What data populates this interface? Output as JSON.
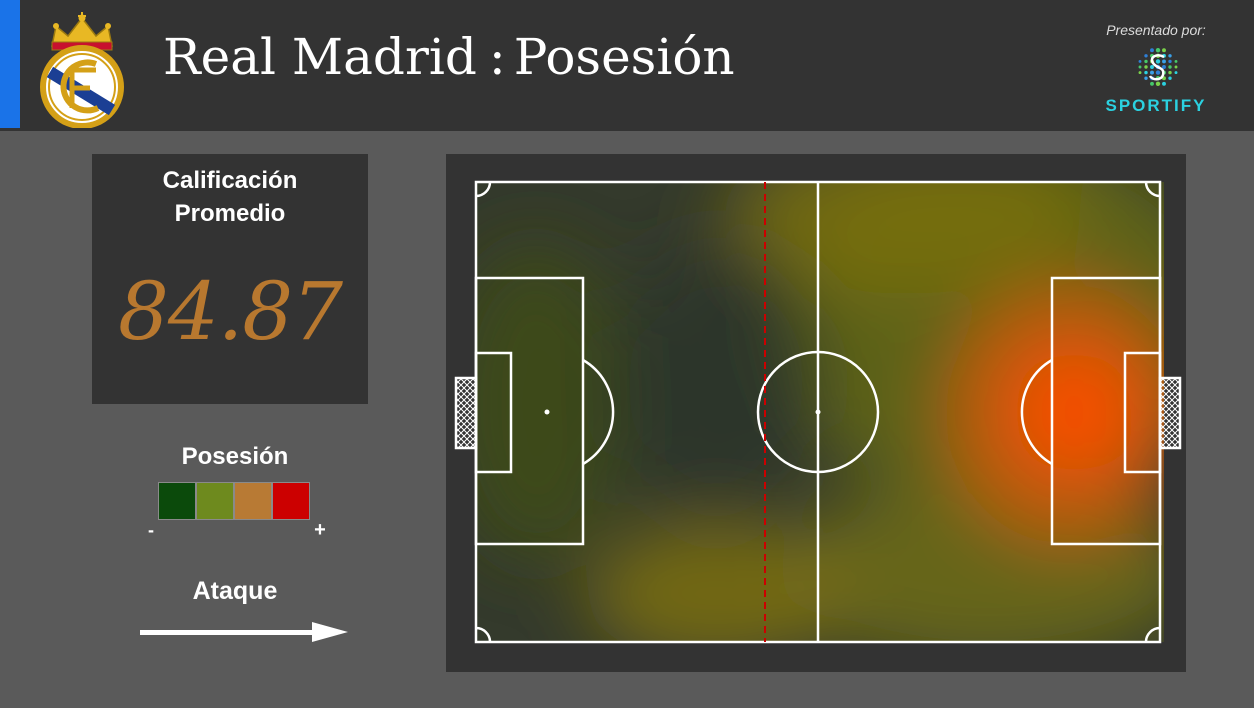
{
  "header": {
    "team": "Real Madrid",
    "separator": ":",
    "metric": "Posesión",
    "sponsor_label": "Presentado por:",
    "sponsor_name": "SPORTIFY",
    "accent_color": "#1a73e8"
  },
  "rating": {
    "title_line1": "Calificación",
    "title_line2": "Promedio",
    "value": "84.87",
    "value_color": "#b8782f"
  },
  "legend": {
    "title": "Posesión",
    "min_label": "-",
    "max_label": "+",
    "colors": [
      "#0b4a0b",
      "#6e8a1e",
      "#b87a34",
      "#cc0000"
    ]
  },
  "attack": {
    "label": "Ataque",
    "direction": "right"
  },
  "icons": {
    "crest": "real-madrid-crest-icon",
    "sponsor": "sportify-logo-icon",
    "arrow": "arrow-right-icon"
  },
  "pitch": {
    "line_color": "#ffffff",
    "offside_line_color": "#cc0000",
    "heat_hotspot_color": "#ff4d00"
  }
}
